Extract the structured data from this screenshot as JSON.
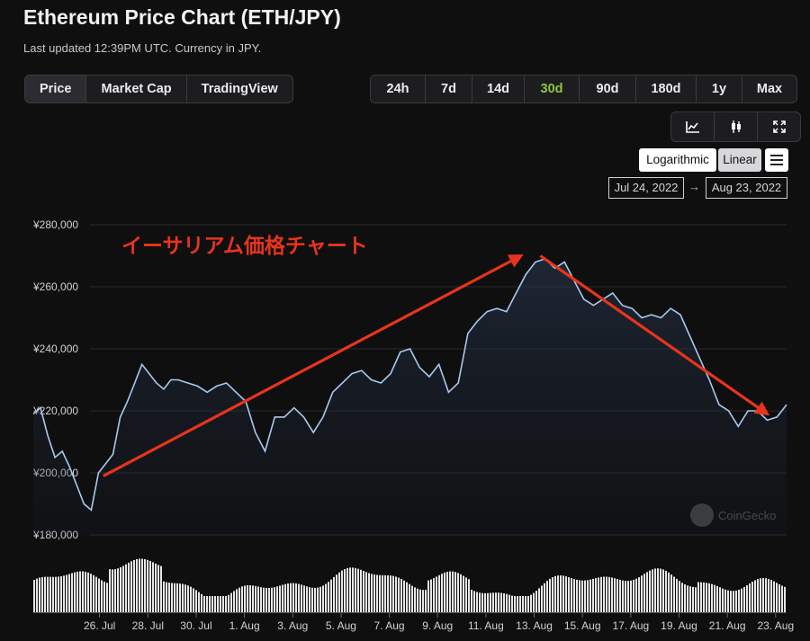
{
  "header": {
    "title": "Ethereum Price Chart (ETH/JPY)",
    "subtitle": "Last updated 12:39PM UTC. Currency in JPY."
  },
  "chart_type_tabs": [
    "Price",
    "Market Cap",
    "TradingView"
  ],
  "range_tabs": [
    "24h",
    "7d",
    "14d",
    "30d",
    "90d",
    "180d",
    "1y",
    "Max"
  ],
  "selected_range": "30d",
  "view_buttons": [
    "line-chart-icon",
    "candlestick-icon",
    "fullscreen-icon"
  ],
  "scale_buttons": {
    "logarithmic": "Logarithmic",
    "linear": "Linear"
  },
  "date_range": {
    "from": "Jul 24, 2022",
    "arrow": "→",
    "to": "Aug 23, 2022"
  },
  "annotation": "イーサリアム価格チャート",
  "watermark": "CoinGecko",
  "colors": {
    "line": "#a9c9ee",
    "annotation": "#e8341c",
    "range_selected": "#8dc63f",
    "volume": "#e6e6e6"
  },
  "chart_data": {
    "type": "line",
    "y_ticks": [
      "¥280,000",
      "¥260,000",
      "¥240,000",
      "¥220,000",
      "¥200,000",
      "¥180,000"
    ],
    "y_tick_values": [
      280000,
      260000,
      240000,
      220000,
      200000,
      180000
    ],
    "ylim": [
      180000,
      280000
    ],
    "x_tick_labels": [
      "26. Jul",
      "28. Jul",
      "30. Jul",
      "1. Aug",
      "3. Aug",
      "5. Aug",
      "7. Aug",
      "9. Aug",
      "11. Aug",
      "13. Aug",
      "15. Aug",
      "17. Aug",
      "19. Aug",
      "21. Aug",
      "23. Aug"
    ],
    "x_tick_days": [
      2,
      4,
      6,
      8,
      10,
      12,
      14,
      16,
      18,
      20,
      22,
      24,
      26,
      28,
      30
    ],
    "price_series": {
      "x_days": [
        0,
        0.3,
        0.6,
        0.9,
        1.2,
        1.5,
        1.8,
        2.1,
        2.4,
        2.7,
        3.0,
        3.3,
        3.6,
        3.9,
        4.2,
        4.5,
        4.8,
        5.1,
        5.4,
        5.7,
        6.0,
        6.4,
        6.8,
        7.2,
        7.6,
        8.0,
        8.4,
        8.8,
        9.2,
        9.6,
        10.0,
        10.4,
        10.8,
        11.2,
        11.6,
        12.0,
        12.4,
        12.8,
        13.2,
        13.6,
        14.0,
        14.4,
        14.8,
        15.2,
        15.6,
        16.0,
        16.4,
        16.8,
        17.2,
        17.6,
        18.0,
        18.4,
        18.8,
        19.2,
        19.6,
        20.0,
        20.4,
        20.8,
        21.2,
        21.6,
        22.0,
        22.4,
        22.8,
        23.2,
        23.6,
        24.0,
        24.4,
        24.8,
        25.2,
        25.6,
        26.0,
        26.4,
        26.8,
        27.2,
        27.6,
        28.0,
        28.4,
        28.8,
        29.2,
        29.6,
        30.0,
        30.4,
        30.8,
        31.2
      ],
      "values": [
        219000,
        221000,
        212000,
        205000,
        207000,
        202000,
        196000,
        190000,
        188000,
        200000,
        203000,
        206000,
        218000,
        223000,
        229000,
        235000,
        232000,
        229000,
        227000,
        230000,
        230000,
        229000,
        228000,
        226000,
        228000,
        229000,
        226000,
        223000,
        213000,
        207000,
        218000,
        218000,
        221000,
        218000,
        213000,
        218000,
        226000,
        229000,
        232000,
        233000,
        230000,
        229000,
        232000,
        239000,
        240000,
        234000,
        231000,
        235000,
        226000,
        229000,
        245000,
        249000,
        252000,
        253000,
        252000,
        258000,
        264000,
        268000,
        269000,
        266000,
        268000,
        262000,
        256000,
        254000,
        256000,
        258000,
        254000,
        253000,
        250000,
        251000,
        250000,
        253000,
        251000,
        244000,
        237000,
        230000,
        222000,
        220000,
        215000,
        220000,
        220000,
        217000,
        218000,
        222000
      ],
      "smoothing_note": ""
    },
    "volume_series_note": "",
    "annotation_arrows": [
      {
        "from": {
          "day": 2.9,
          "price": 199000
        },
        "to": {
          "day": 20.2,
          "price": 270000
        }
      },
      {
        "from": {
          "day": 21.0,
          "price": 270000
        },
        "to": {
          "day": 30.4,
          "price": 219000
        }
      }
    ]
  }
}
